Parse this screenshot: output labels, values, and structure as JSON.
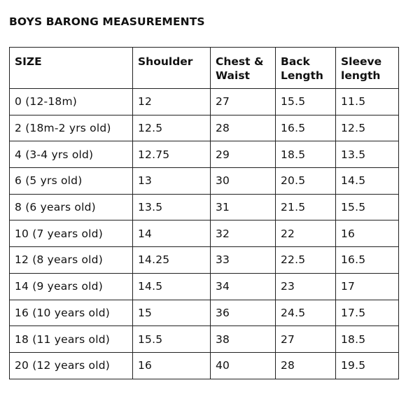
{
  "title": "BOYS BARONG MEASUREMENTS",
  "table": {
    "headers": [
      {
        "line1": "SIZE",
        "line2": ""
      },
      {
        "line1": "Shoulder",
        "line2": ""
      },
      {
        "line1": "Chest &",
        "line2": "Waist"
      },
      {
        "line1": "Back",
        "line2": "Length"
      },
      {
        "line1": "Sleeve",
        "line2": "length"
      }
    ],
    "rows": [
      [
        "0 (12-18m)",
        "12",
        "27",
        "15.5",
        "11.5"
      ],
      [
        "2 (18m-2 yrs old)",
        "12.5",
        "28",
        "16.5",
        "12.5"
      ],
      [
        "4 (3-4 yrs old)",
        "12.75",
        "29",
        "18.5",
        "13.5"
      ],
      [
        "6 (5 yrs old)",
        "13",
        "30",
        "20.5",
        "14.5"
      ],
      [
        "8 (6 years old)",
        "13.5",
        "31",
        "21.5",
        "15.5"
      ],
      [
        "10 (7 years old)",
        "14",
        "32",
        "22",
        "16"
      ],
      [
        "12 (8 years old)",
        "14.25",
        "33",
        "22.5",
        "16.5"
      ],
      [
        "14 (9 years old)",
        "14.5",
        "34",
        "23",
        "17"
      ],
      [
        "16 (10 years old)",
        "15",
        "36",
        "24.5",
        "17.5"
      ],
      [
        "18 (11 years old)",
        "15.5",
        "38",
        "27",
        "18.5"
      ],
      [
        "20 (12 years old)",
        "16",
        "40",
        "28",
        "19.5"
      ]
    ]
  }
}
